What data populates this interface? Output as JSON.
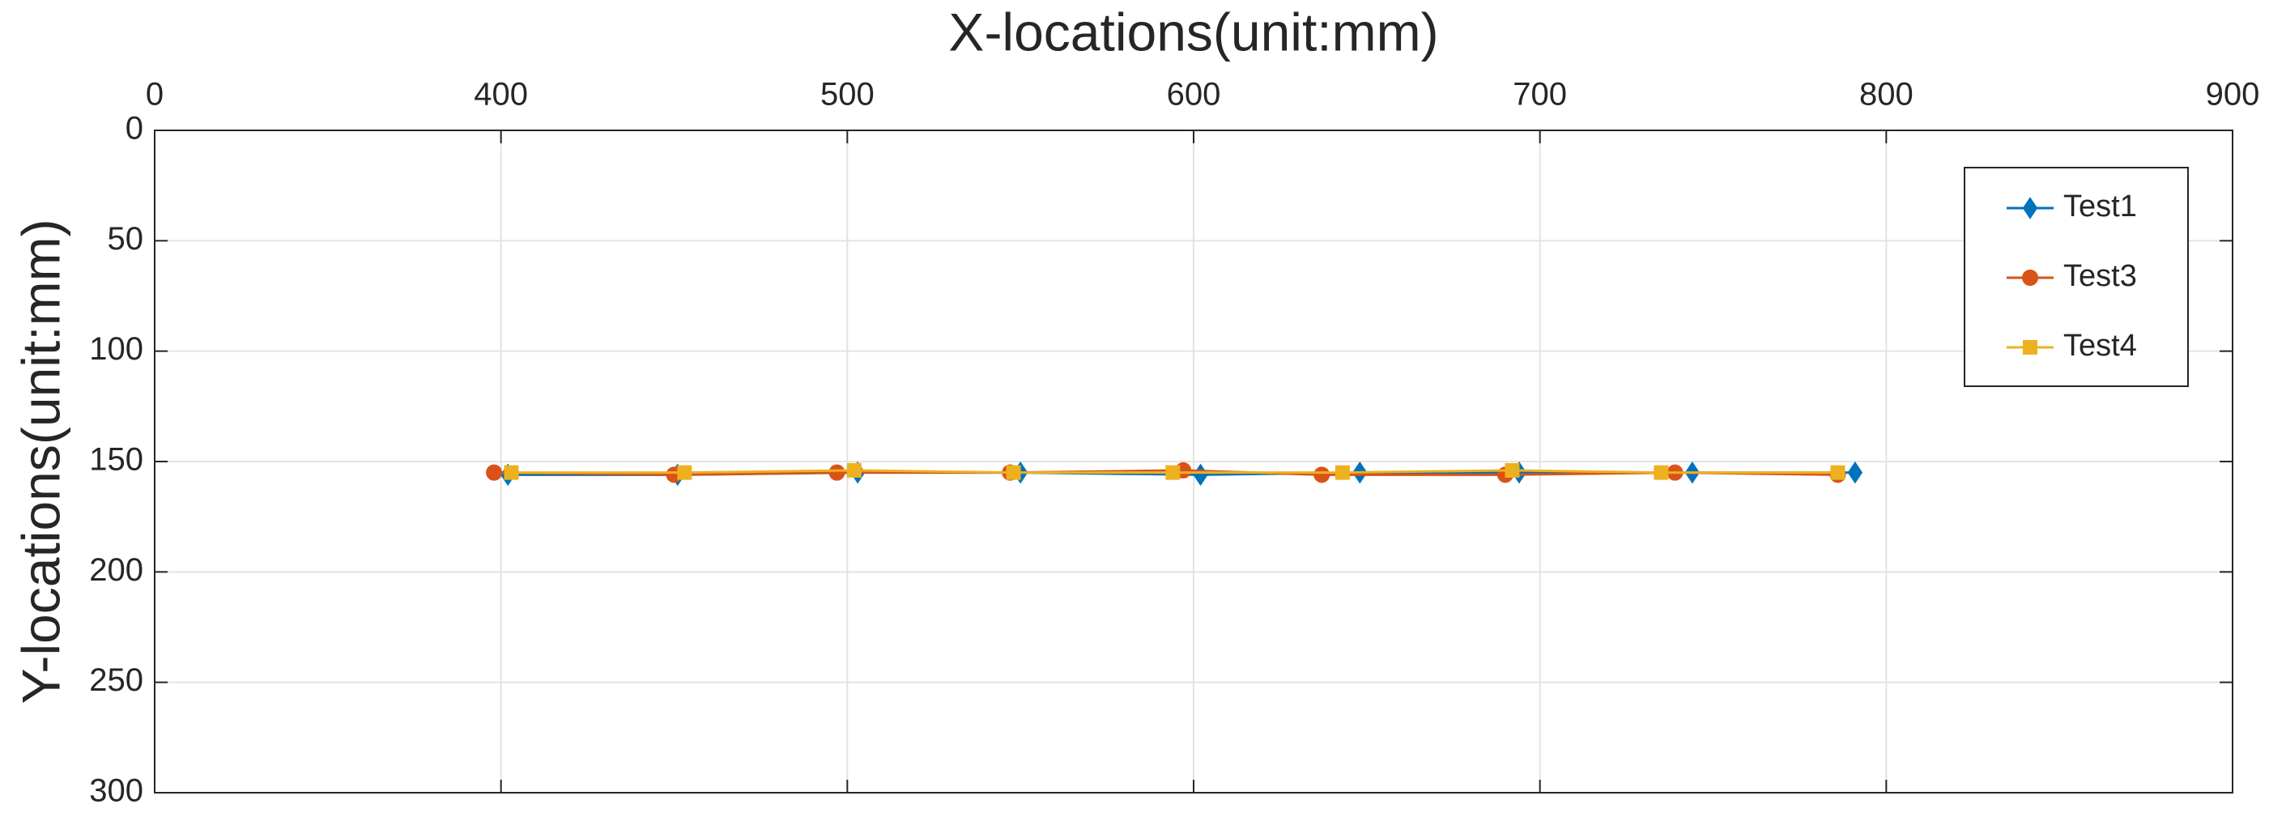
{
  "chart_data": {
    "type": "line",
    "xlabel": "X-locations(unit:mm)",
    "ylabel": "Y-locations(unit:mm)",
    "xlim": [
      300,
      900
    ],
    "xticks": [
      {
        "value": 300,
        "label": "0"
      },
      400,
      500,
      600,
      700,
      800,
      900
    ],
    "ylim": [
      0,
      300
    ],
    "yticks": [
      0,
      50,
      100,
      150,
      200,
      250,
      300
    ],
    "y_reversed": true,
    "x_axis_position": "top",
    "grid": true,
    "legend_position": "northeast",
    "series": [
      {
        "name": "Test1",
        "color": "#0072bd",
        "marker": "diamond",
        "x": [
          402,
          451,
          503,
          550,
          602,
          648,
          694,
          744,
          791
        ],
        "values": [
          156,
          156,
          155,
          155,
          156,
          155,
          155,
          155,
          155
        ]
      },
      {
        "name": "Test3",
        "color": "#d95319",
        "marker": "circle",
        "x": [
          398,
          450,
          497,
          547,
          597,
          637,
          690,
          739,
          786
        ],
        "values": [
          155,
          156,
          155,
          155,
          154,
          156,
          156,
          155,
          156
        ]
      },
      {
        "name": "Test4",
        "color": "#edb120",
        "marker": "square",
        "x": [
          403,
          453,
          502,
          548,
          594,
          643,
          692,
          735,
          786
        ],
        "values": [
          155,
          155,
          154,
          155,
          155,
          155,
          154,
          155,
          155
        ]
      }
    ]
  }
}
